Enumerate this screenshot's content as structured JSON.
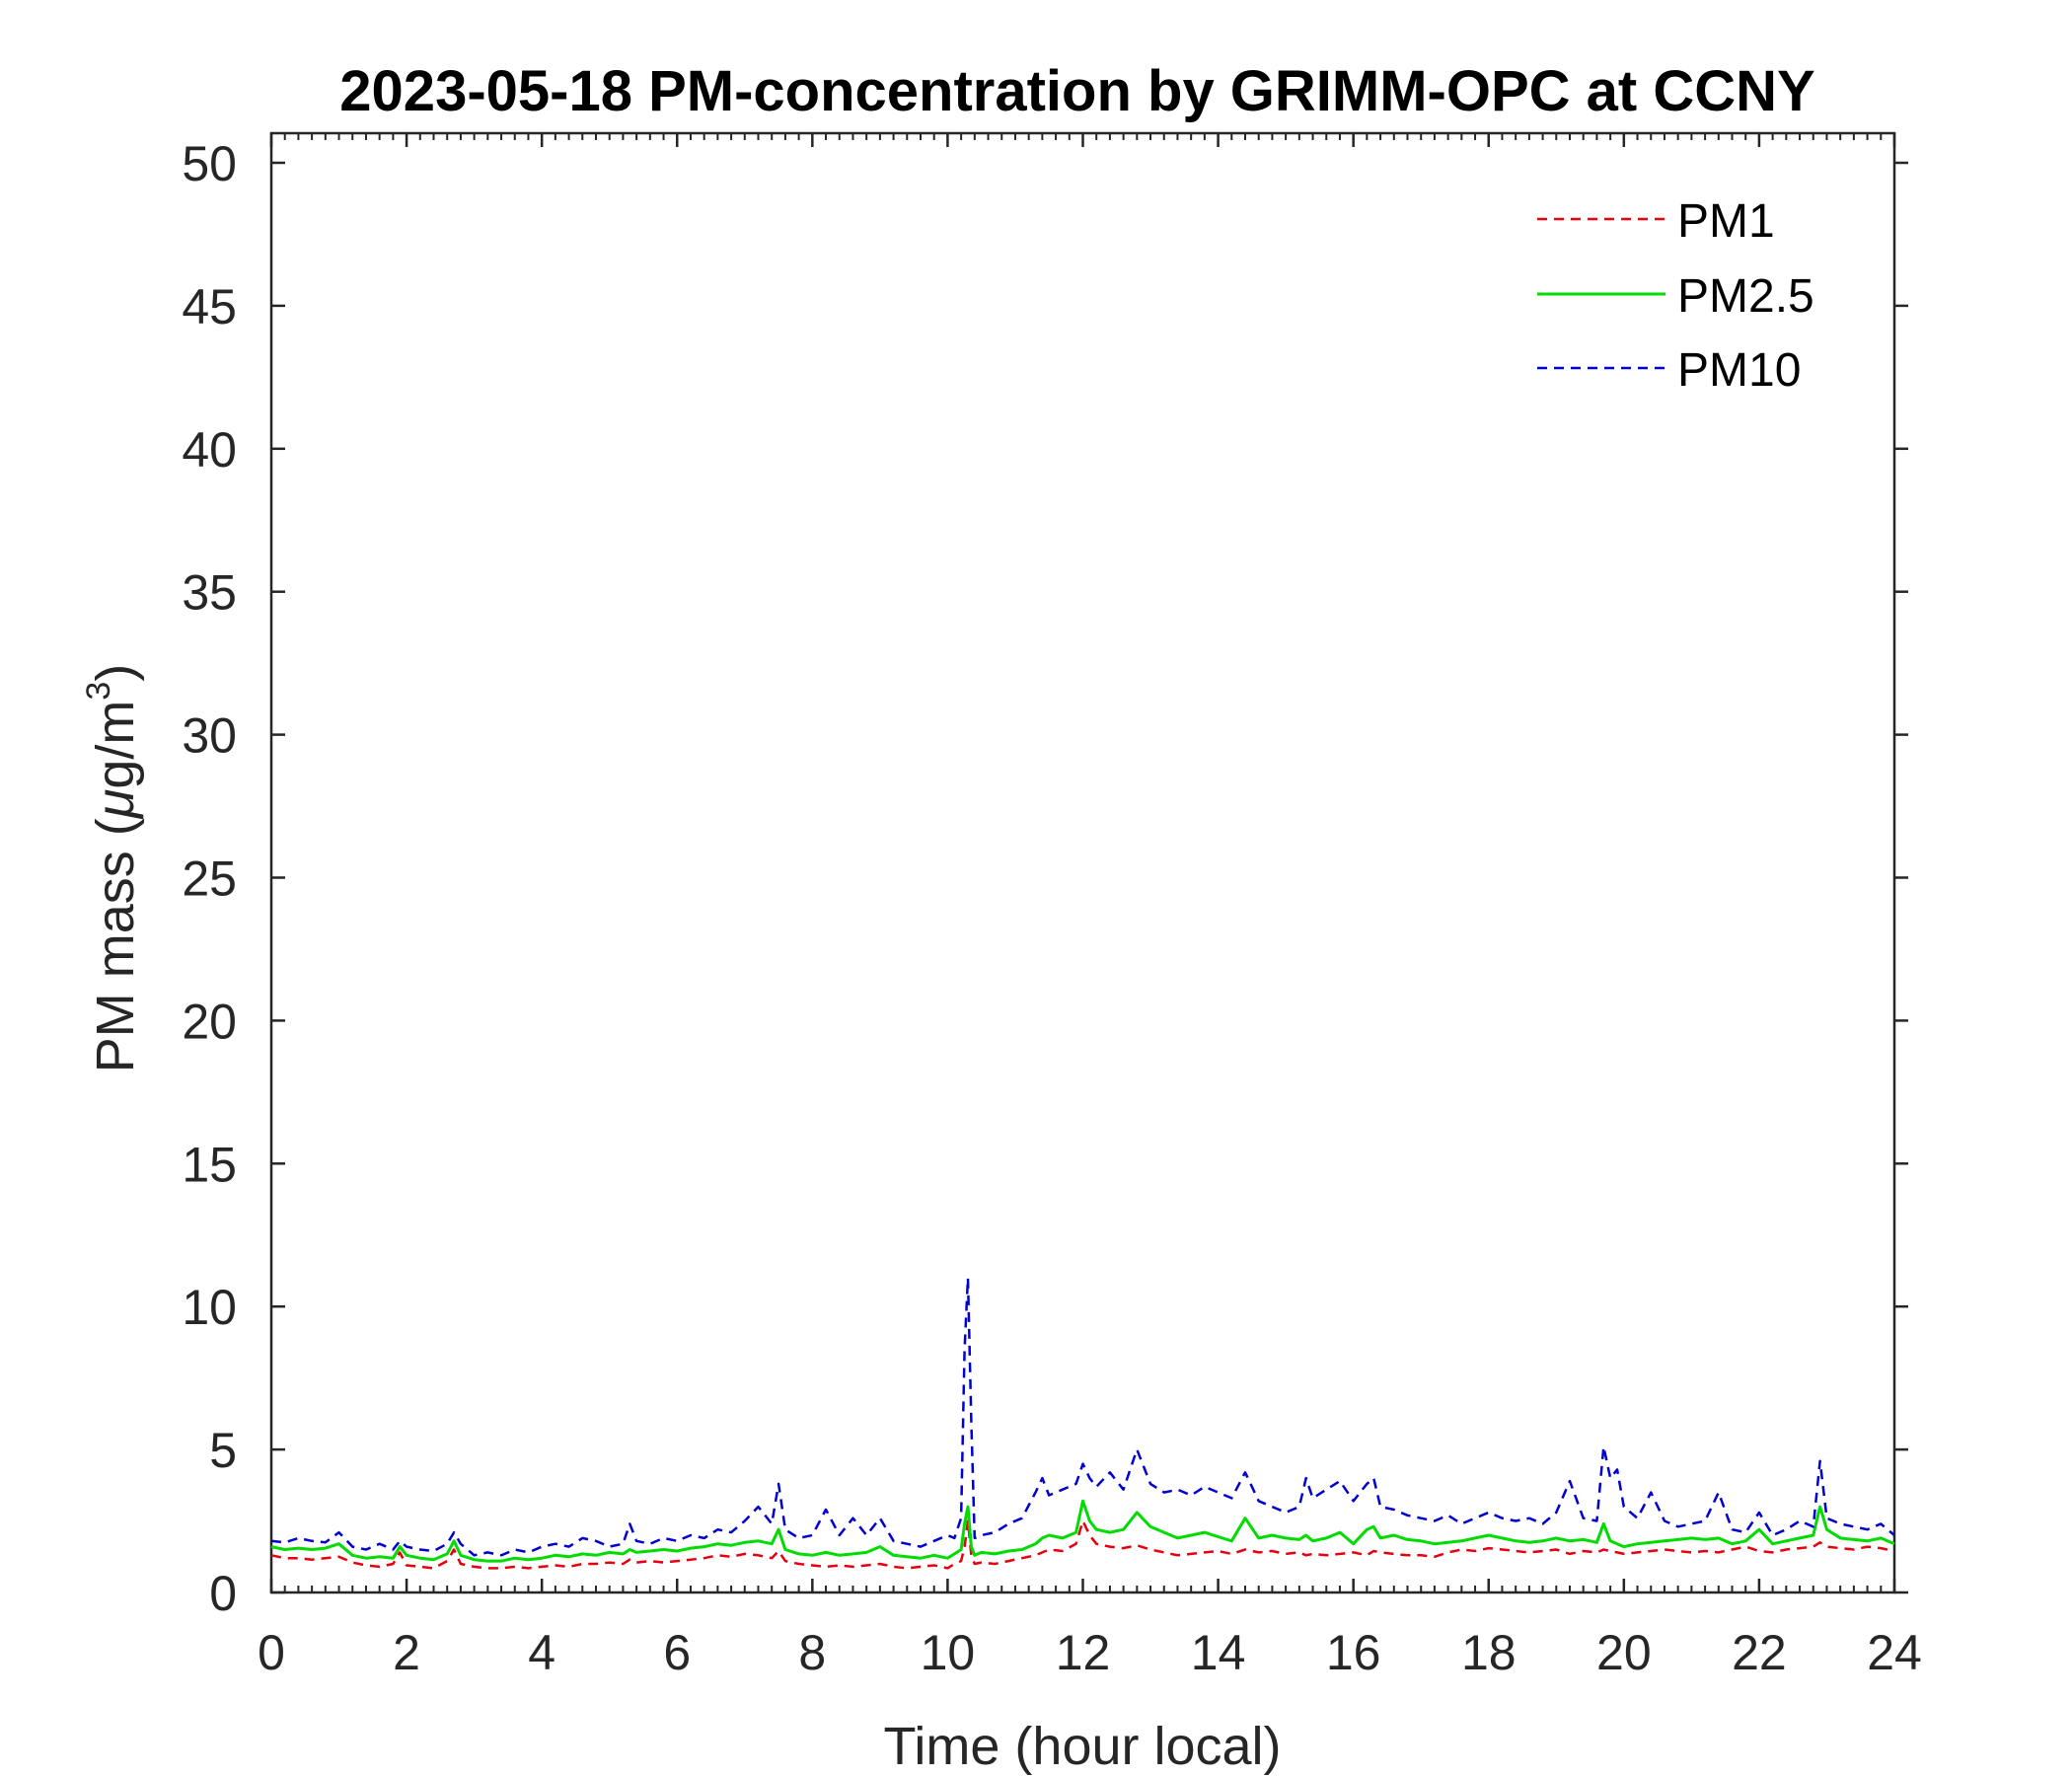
{
  "chart_data": {
    "type": "line",
    "title": "2023-05-18 PM-concentration by GRIMM-OPC at CCNY",
    "xlabel": "Time (hour local)",
    "ylabel_main": "PM mass (",
    "ylabel_mu": "μ",
    "ylabel_unit": "g/m",
    "ylabel_sup": "3",
    "ylabel_close": ")",
    "xlim": [
      0,
      24
    ],
    "ylim": [
      0,
      50
    ],
    "xticks": [
      0,
      2,
      4,
      6,
      8,
      10,
      12,
      14,
      16,
      18,
      20,
      22,
      24
    ],
    "yticks": [
      0,
      5,
      10,
      15,
      20,
      25,
      30,
      35,
      40,
      45,
      50
    ],
    "grid": false,
    "legend_position": "top-right",
    "x": [
      0.0,
      0.2,
      0.4,
      0.6,
      0.8,
      1.0,
      1.2,
      1.4,
      1.6,
      1.8,
      1.9,
      2.0,
      2.2,
      2.4,
      2.6,
      2.7,
      2.8,
      3.0,
      3.2,
      3.4,
      3.6,
      3.8,
      4.0,
      4.2,
      4.4,
      4.6,
      4.8,
      5.0,
      5.2,
      5.3,
      5.4,
      5.6,
      5.8,
      6.0,
      6.2,
      6.4,
      6.6,
      6.8,
      7.0,
      7.2,
      7.4,
      7.5,
      7.6,
      7.8,
      8.0,
      8.2,
      8.4,
      8.6,
      8.8,
      9.0,
      9.2,
      9.4,
      9.6,
      9.8,
      10.0,
      10.1,
      10.2,
      10.25,
      10.3,
      10.35,
      10.4,
      10.5,
      10.7,
      10.9,
      11.1,
      11.3,
      11.4,
      11.5,
      11.7,
      11.9,
      12.0,
      12.1,
      12.2,
      12.4,
      12.6,
      12.8,
      13.0,
      13.2,
      13.4,
      13.6,
      13.8,
      14.0,
      14.2,
      14.4,
      14.6,
      14.8,
      15.0,
      15.2,
      15.3,
      15.4,
      15.6,
      15.8,
      16.0,
      16.2,
      16.3,
      16.4,
      16.6,
      16.8,
      17.0,
      17.2,
      17.4,
      17.6,
      17.8,
      18.0,
      18.2,
      18.4,
      18.6,
      18.8,
      19.0,
      19.2,
      19.4,
      19.6,
      19.7,
      19.8,
      19.9,
      20.0,
      20.2,
      20.4,
      20.6,
      20.8,
      21.0,
      21.2,
      21.4,
      21.6,
      21.8,
      22.0,
      22.2,
      22.4,
      22.6,
      22.8,
      22.9,
      23.0,
      23.2,
      23.4,
      23.6,
      23.8,
      24.0
    ],
    "series": [
      {
        "name": "PM1",
        "color": "#e6000f",
        "dash": "dashed",
        "values": [
          1.3,
          1.2,
          1.2,
          1.15,
          1.2,
          1.25,
          1.05,
          0.95,
          0.9,
          1.0,
          1.4,
          0.95,
          0.9,
          0.85,
          1.1,
          1.5,
          1.0,
          0.9,
          0.85,
          0.85,
          0.9,
          0.85,
          0.9,
          0.95,
          0.9,
          1.0,
          1.0,
          1.05,
          1.0,
          1.15,
          1.05,
          1.1,
          1.05,
          1.1,
          1.15,
          1.2,
          1.3,
          1.25,
          1.35,
          1.3,
          1.2,
          1.45,
          1.1,
          1.0,
          0.95,
          0.9,
          0.95,
          0.9,
          0.95,
          1.0,
          0.9,
          0.85,
          0.9,
          0.95,
          0.85,
          1.0,
          1.1,
          1.6,
          2.5,
          1.3,
          1.0,
          1.05,
          1.0,
          1.1,
          1.2,
          1.3,
          1.4,
          1.5,
          1.45,
          1.7,
          2.5,
          2.0,
          1.7,
          1.6,
          1.55,
          1.65,
          1.5,
          1.4,
          1.3,
          1.35,
          1.4,
          1.45,
          1.35,
          1.5,
          1.4,
          1.45,
          1.35,
          1.4,
          1.3,
          1.35,
          1.3,
          1.35,
          1.4,
          1.3,
          1.45,
          1.4,
          1.35,
          1.3,
          1.3,
          1.25,
          1.4,
          1.5,
          1.45,
          1.55,
          1.5,
          1.45,
          1.4,
          1.45,
          1.5,
          1.35,
          1.45,
          1.4,
          1.5,
          1.45,
          1.4,
          1.35,
          1.4,
          1.45,
          1.5,
          1.45,
          1.4,
          1.45,
          1.4,
          1.5,
          1.6,
          1.45,
          1.4,
          1.5,
          1.55,
          1.6,
          1.75,
          1.6,
          1.55,
          1.5,
          1.6,
          1.55,
          1.45
        ]
      },
      {
        "name": "PM2.5",
        "color": "#00dc00",
        "dash": "solid",
        "values": [
          1.6,
          1.5,
          1.55,
          1.5,
          1.55,
          1.7,
          1.3,
          1.2,
          1.25,
          1.2,
          1.6,
          1.3,
          1.2,
          1.15,
          1.35,
          1.8,
          1.3,
          1.15,
          1.1,
          1.1,
          1.2,
          1.15,
          1.2,
          1.3,
          1.25,
          1.35,
          1.3,
          1.4,
          1.35,
          1.5,
          1.4,
          1.45,
          1.5,
          1.45,
          1.55,
          1.6,
          1.7,
          1.65,
          1.75,
          1.8,
          1.7,
          2.2,
          1.5,
          1.35,
          1.3,
          1.4,
          1.3,
          1.35,
          1.4,
          1.6,
          1.3,
          1.25,
          1.2,
          1.3,
          1.2,
          1.35,
          1.5,
          2.4,
          3.0,
          1.6,
          1.3,
          1.4,
          1.35,
          1.45,
          1.5,
          1.7,
          1.9,
          2.0,
          1.9,
          2.1,
          3.2,
          2.5,
          2.2,
          2.1,
          2.2,
          2.8,
          2.3,
          2.1,
          1.9,
          2.0,
          2.1,
          1.95,
          1.8,
          2.6,
          1.9,
          2.0,
          1.9,
          1.85,
          2.0,
          1.8,
          1.9,
          2.1,
          1.7,
          2.2,
          2.3,
          1.9,
          2.0,
          1.85,
          1.8,
          1.7,
          1.75,
          1.8,
          1.9,
          2.0,
          1.9,
          1.8,
          1.75,
          1.8,
          1.9,
          1.8,
          1.85,
          1.75,
          2.4,
          1.8,
          1.7,
          1.6,
          1.7,
          1.75,
          1.8,
          1.85,
          1.9,
          1.85,
          1.9,
          1.7,
          1.8,
          2.2,
          1.7,
          1.8,
          1.9,
          2.0,
          3.0,
          2.2,
          1.9,
          1.85,
          1.8,
          1.9,
          1.7
        ]
      },
      {
        "name": "PM10",
        "color": "#0000d2",
        "dash": "dashed",
        "values": [
          1.8,
          1.75,
          1.9,
          1.8,
          1.75,
          2.1,
          1.6,
          1.5,
          1.7,
          1.5,
          1.8,
          1.6,
          1.5,
          1.45,
          1.7,
          2.1,
          1.7,
          1.3,
          1.4,
          1.3,
          1.5,
          1.4,
          1.6,
          1.7,
          1.6,
          1.9,
          1.8,
          1.6,
          1.7,
          2.4,
          1.8,
          1.7,
          1.9,
          1.8,
          2.0,
          1.9,
          2.2,
          2.1,
          2.5,
          3.0,
          2.4,
          3.8,
          2.2,
          1.9,
          2.0,
          2.9,
          2.0,
          2.6,
          2.0,
          2.6,
          1.8,
          1.7,
          1.6,
          1.8,
          2.0,
          1.9,
          2.6,
          8.5,
          11.0,
          6.0,
          1.9,
          2.0,
          2.1,
          2.4,
          2.6,
          3.5,
          4.0,
          3.4,
          3.6,
          3.8,
          4.5,
          4.0,
          3.7,
          4.2,
          3.6,
          5.0,
          3.8,
          3.5,
          3.6,
          3.4,
          3.7,
          3.5,
          3.3,
          4.2,
          3.2,
          3.0,
          2.8,
          3.0,
          4.0,
          3.3,
          3.6,
          3.9,
          3.2,
          3.8,
          4.0,
          3.0,
          2.9,
          2.7,
          2.6,
          2.5,
          2.7,
          2.4,
          2.6,
          2.8,
          2.6,
          2.5,
          2.6,
          2.4,
          2.8,
          3.9,
          2.6,
          2.5,
          5.1,
          4.0,
          4.3,
          3.0,
          2.6,
          3.5,
          2.5,
          2.3,
          2.4,
          2.5,
          3.5,
          2.2,
          2.1,
          2.8,
          2.0,
          2.2,
          2.5,
          2.3,
          4.6,
          2.6,
          2.4,
          2.3,
          2.2,
          2.4,
          2.0
        ]
      }
    ]
  }
}
